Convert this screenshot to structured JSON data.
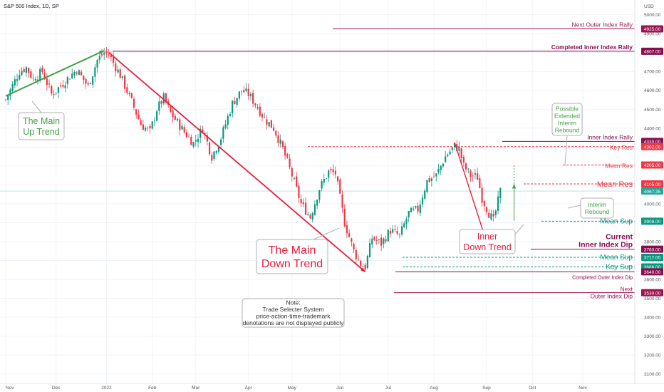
{
  "chart_data": {
    "type": "candlestick",
    "title": "S&P 500 Index, 1D, SP",
    "currency": "USD",
    "ylim": [
      3080,
      5040
    ],
    "x_axis": {
      "ticks": [
        {
          "label": "Nov",
          "t": 0
        },
        {
          "label": "Dec",
          "t": 22
        },
        {
          "label": "2022",
          "t": 44
        },
        {
          "label": "Feb",
          "t": 64
        },
        {
          "label": "Mar",
          "t": 83
        },
        {
          "label": "Apr",
          "t": 106
        },
        {
          "label": "May",
          "t": 125
        },
        {
          "label": "Jun",
          "t": 146
        },
        {
          "label": "Jul",
          "t": 167
        },
        {
          "label": "Aug",
          "t": 187
        },
        {
          "label": "Sep",
          "t": 210
        },
        {
          "label": "Oct",
          "t": 230
        },
        {
          "label": "Nov",
          "t": 252
        }
      ],
      "t_range": [
        0,
        252
      ]
    },
    "y_ticks": [
      3100,
      3200,
      3300,
      3400,
      3500,
      3600,
      3700,
      3800,
      3900,
      4000,
      4100,
      4200,
      4300,
      4400,
      4500,
      4600,
      4700,
      4800,
      4900,
      5000
    ],
    "price_path": [
      [
        0,
        4550
      ],
      [
        6,
        4700
      ],
      [
        9,
        4720
      ],
      [
        12,
        4660
      ],
      [
        16,
        4700
      ],
      [
        20,
        4580
      ],
      [
        22,
        4600
      ],
      [
        26,
        4650
      ],
      [
        31,
        4710
      ],
      [
        36,
        4620
      ],
      [
        40,
        4760
      ],
      [
        43,
        4800
      ],
      [
        45,
        4790
      ],
      [
        50,
        4680
      ],
      [
        55,
        4540
      ],
      [
        59,
        4420
      ],
      [
        63,
        4380
      ],
      [
        66,
        4500
      ],
      [
        69,
        4560
      ],
      [
        72,
        4480
      ],
      [
        78,
        4380
      ],
      [
        82,
        4320
      ],
      [
        86,
        4400
      ],
      [
        90,
        4250
      ],
      [
        94,
        4350
      ],
      [
        99,
        4530
      ],
      [
        103,
        4600
      ],
      [
        106,
        4580
      ],
      [
        110,
        4510
      ],
      [
        113,
        4450
      ],
      [
        117,
        4400
      ],
      [
        121,
        4290
      ],
      [
        125,
        4150
      ],
      [
        129,
        4000
      ],
      [
        133,
        3930
      ],
      [
        137,
        4080
      ],
      [
        141,
        4170
      ],
      [
        144,
        4160
      ],
      [
        148,
        3900
      ],
      [
        152,
        3750
      ],
      [
        155,
        3680
      ],
      [
        157,
        3666
      ],
      [
        160,
        3820
      ],
      [
        164,
        3790
      ],
      [
        168,
        3860
      ],
      [
        172,
        3830
      ],
      [
        176,
        3950
      ],
      [
        180,
        3970
      ],
      [
        184,
        4120
      ],
      [
        188,
        4150
      ],
      [
        192,
        4250
      ],
      [
        196,
        4305
      ],
      [
        198,
        4290
      ],
      [
        200,
        4200
      ],
      [
        203,
        4150
      ],
      [
        206,
        4140
      ],
      [
        208,
        4030
      ],
      [
        211,
        3950
      ],
      [
        213,
        3910
      ],
      [
        216,
        4067
      ]
    ],
    "levels": [
      {
        "label": "Next Outer Index Rally",
        "value": "4925.00",
        "price": 4925,
        "color": "#9c1550"
      },
      {
        "label": "Completed Inner Index Rally",
        "value": "4807.00",
        "price": 4807,
        "color": "#880e4f"
      },
      {
        "label": "Inner Index Rally",
        "value": "4330.00",
        "price": 4330,
        "color": "#880e4f"
      },
      {
        "label": "Key Res",
        "value": "4302.00",
        "price": 4302,
        "color": "#f23645"
      },
      {
        "label": "Mean Res",
        "value": "4205.00",
        "price": 4205,
        "color": "#f23645"
      },
      {
        "label": "Mean Res",
        "value": "4105.00",
        "price": 4105,
        "color": "#f23645"
      },
      {
        "label": "",
        "value": "4067.35",
        "price": 4067.35,
        "color": "#26a69a"
      },
      {
        "label": "Mean Sup",
        "value": "3908.00",
        "price": 3908,
        "color": "#089981"
      },
      {
        "label": "Current Inner Index Dip",
        "value": "3760.00",
        "price": 3760,
        "color": "#880e4f"
      },
      {
        "label": "Mean Sup",
        "value": "3717.00",
        "price": 3717,
        "color": "#089981"
      },
      {
        "label": "Key Sup",
        "value": "3666.00",
        "price": 3666,
        "color": "#089981"
      },
      {
        "label": "Completed Outer Index Dip",
        "value": "3640.00",
        "price": 3640,
        "color": "#880e4f"
      },
      {
        "label": "Next Outer Index Dip",
        "value": "3530.00",
        "price": 3530,
        "color": "#9c1550"
      }
    ],
    "annotations": [
      {
        "name": "main-up-trend",
        "lines": [
          "The Main",
          "Up Trend"
        ],
        "color": "#43a047"
      },
      {
        "name": "main-down-trend",
        "lines": [
          "The Main",
          "Down Trend"
        ],
        "color": "#e91e3c"
      },
      {
        "name": "inner-down-trend",
        "lines": [
          "Inner",
          "Down Trend"
        ],
        "color": "#e91e3c"
      },
      {
        "name": "interim-rebound",
        "lines": [
          "Interim",
          "Rebound"
        ],
        "color": "#43a047"
      },
      {
        "name": "possible-extended-rebound",
        "lines": [
          "Possible",
          "Extended",
          "Interim",
          "Rebound"
        ],
        "color": "#43a047"
      },
      {
        "name": "note",
        "lines": [
          "Note:",
          "Trade Selecter System",
          "price-action-time-trademark",
          "denotations are not displayed publicly"
        ],
        "color": "#333333"
      }
    ]
  }
}
